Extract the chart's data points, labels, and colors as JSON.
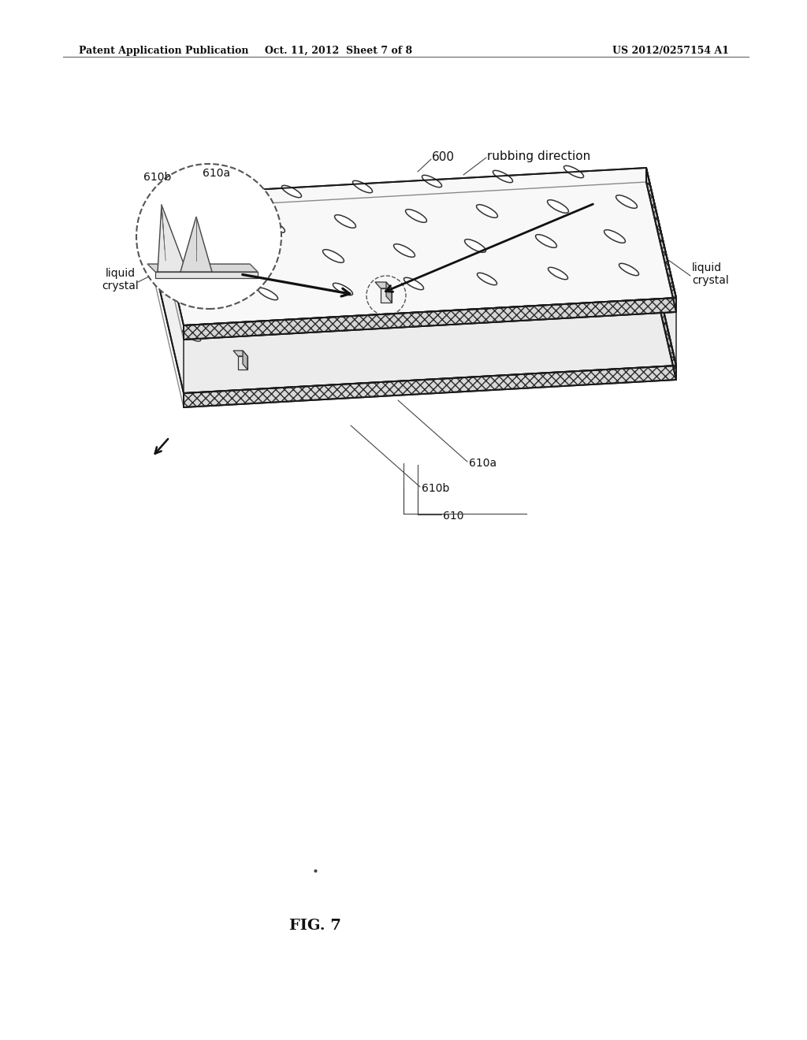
{
  "bg_color": "#ffffff",
  "header_left": "Patent Application Publication",
  "header_mid": "Oct. 11, 2012  Sheet 7 of 8",
  "header_right": "US 2012/0257154 A1",
  "figure_label": "FIG. 7",
  "label_600": "600",
  "label_rubbing": "rubbing direction",
  "label_liquid_crystal_left": "liquid\ncrystal",
  "label_liquid_crystal_right": "liquid\ncrystal",
  "label_610a_top": "610a",
  "label_610b_top": "610b",
  "label_610a_bot": "610a",
  "label_610b_bot": "610b",
  "label_610": "610",
  "line_color": "#2a2a2a",
  "hatch_color": "#555555",
  "face_light": "#f5f5f5",
  "face_mid": "#e0e0e0",
  "face_dark": "#c8c8c8"
}
